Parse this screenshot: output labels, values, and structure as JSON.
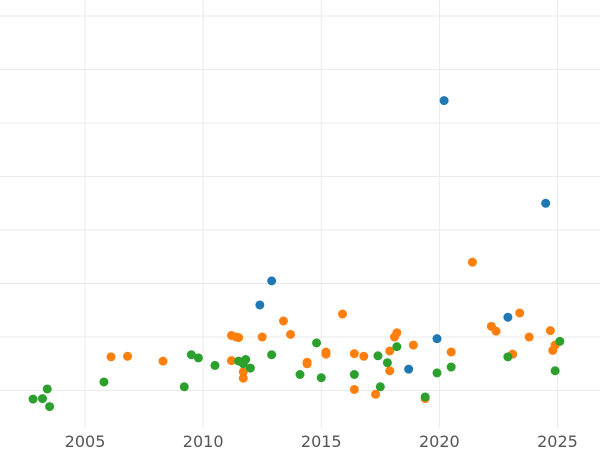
{
  "chart_data": {
    "type": "scatter",
    "title": "",
    "xlabel": "",
    "ylabel": "",
    "xlim": [
      2001.4,
      2026.8
    ],
    "ylim": [
      -0.7,
      7.3
    ],
    "grid": true,
    "x_ticks": [
      2005,
      2010,
      2015,
      2020,
      2025
    ],
    "x_tick_labels": [
      "2005",
      "2010",
      "2015",
      "2020",
      "2025"
    ],
    "y_gridlines": [
      0,
      1,
      2,
      3,
      4,
      5,
      6,
      7
    ],
    "series": [
      {
        "color": "#1f77b4",
        "points": [
          {
            "x": 2012.9,
            "y": 2.05
          },
          {
            "x": 2012.4,
            "y": 1.6
          },
          {
            "x": 2018.7,
            "y": 0.4
          },
          {
            "x": 2019.9,
            "y": 0.97
          },
          {
            "x": 2020.2,
            "y": 5.42
          },
          {
            "x": 2022.9,
            "y": 1.37
          },
          {
            "x": 2024.5,
            "y": 3.5
          }
        ]
      },
      {
        "color": "#ff7f0e",
        "points": [
          {
            "x": 2006.1,
            "y": 0.63
          },
          {
            "x": 2006.8,
            "y": 0.64
          },
          {
            "x": 2008.3,
            "y": 0.55
          },
          {
            "x": 2011.2,
            "y": 1.03
          },
          {
            "x": 2011.4,
            "y": 1.0
          },
          {
            "x": 2011.5,
            "y": 0.99
          },
          {
            "x": 2011.2,
            "y": 0.56
          },
          {
            "x": 2011.7,
            "y": 0.35
          },
          {
            "x": 2011.7,
            "y": 0.23
          },
          {
            "x": 2012.5,
            "y": 1.0
          },
          {
            "x": 2013.4,
            "y": 1.3
          },
          {
            "x": 2013.7,
            "y": 1.05
          },
          {
            "x": 2014.4,
            "y": 0.5
          },
          {
            "x": 2014.4,
            "y": 0.53
          },
          {
            "x": 2015.2,
            "y": 0.68
          },
          {
            "x": 2015.2,
            "y": 0.72
          },
          {
            "x": 2015.9,
            "y": 1.43
          },
          {
            "x": 2016.4,
            "y": 0.69
          },
          {
            "x": 2016.4,
            "y": 0.02
          },
          {
            "x": 2016.8,
            "y": 0.64
          },
          {
            "x": 2017.3,
            "y": -0.07
          },
          {
            "x": 2017.9,
            "y": 0.74
          },
          {
            "x": 2017.9,
            "y": 0.37
          },
          {
            "x": 2018.1,
            "y": 1.0
          },
          {
            "x": 2018.2,
            "y": 1.08
          },
          {
            "x": 2018.9,
            "y": 0.85
          },
          {
            "x": 2019.4,
            "y": -0.15
          },
          {
            "x": 2020.5,
            "y": 0.72
          },
          {
            "x": 2021.4,
            "y": 2.4
          },
          {
            "x": 2022.2,
            "y": 1.2
          },
          {
            "x": 2022.4,
            "y": 1.11
          },
          {
            "x": 2023.1,
            "y": 0.68
          },
          {
            "x": 2023.4,
            "y": 1.45
          },
          {
            "x": 2023.8,
            "y": 1.0
          },
          {
            "x": 2024.7,
            "y": 1.12
          },
          {
            "x": 2024.9,
            "y": 0.85
          },
          {
            "x": 2024.8,
            "y": 0.75
          }
        ]
      },
      {
        "color": "#2ca02c",
        "points": [
          {
            "x": 2002.8,
            "y": -0.16
          },
          {
            "x": 2003.2,
            "y": -0.15
          },
          {
            "x": 2003.4,
            "y": 0.03
          },
          {
            "x": 2003.5,
            "y": -0.3
          },
          {
            "x": 2005.8,
            "y": 0.16
          },
          {
            "x": 2009.2,
            "y": 0.07
          },
          {
            "x": 2009.5,
            "y": 0.67
          },
          {
            "x": 2009.8,
            "y": 0.61
          },
          {
            "x": 2010.5,
            "y": 0.47
          },
          {
            "x": 2011.5,
            "y": 0.55
          },
          {
            "x": 2011.8,
            "y": 0.58
          },
          {
            "x": 2011.7,
            "y": 0.5
          },
          {
            "x": 2012.0,
            "y": 0.42
          },
          {
            "x": 2012.9,
            "y": 0.67
          },
          {
            "x": 2014.1,
            "y": 0.3
          },
          {
            "x": 2014.8,
            "y": 0.89
          },
          {
            "x": 2015.0,
            "y": 0.24
          },
          {
            "x": 2016.4,
            "y": 0.3
          },
          {
            "x": 2017.4,
            "y": 0.65
          },
          {
            "x": 2017.5,
            "y": 0.07
          },
          {
            "x": 2017.8,
            "y": 0.52
          },
          {
            "x": 2018.2,
            "y": 0.82
          },
          {
            "x": 2019.4,
            "y": -0.12
          },
          {
            "x": 2019.9,
            "y": 0.33
          },
          {
            "x": 2020.5,
            "y": 0.44
          },
          {
            "x": 2022.9,
            "y": 0.63
          },
          {
            "x": 2024.9,
            "y": 0.37
          },
          {
            "x": 2025.1,
            "y": 0.92
          }
        ]
      }
    ]
  }
}
